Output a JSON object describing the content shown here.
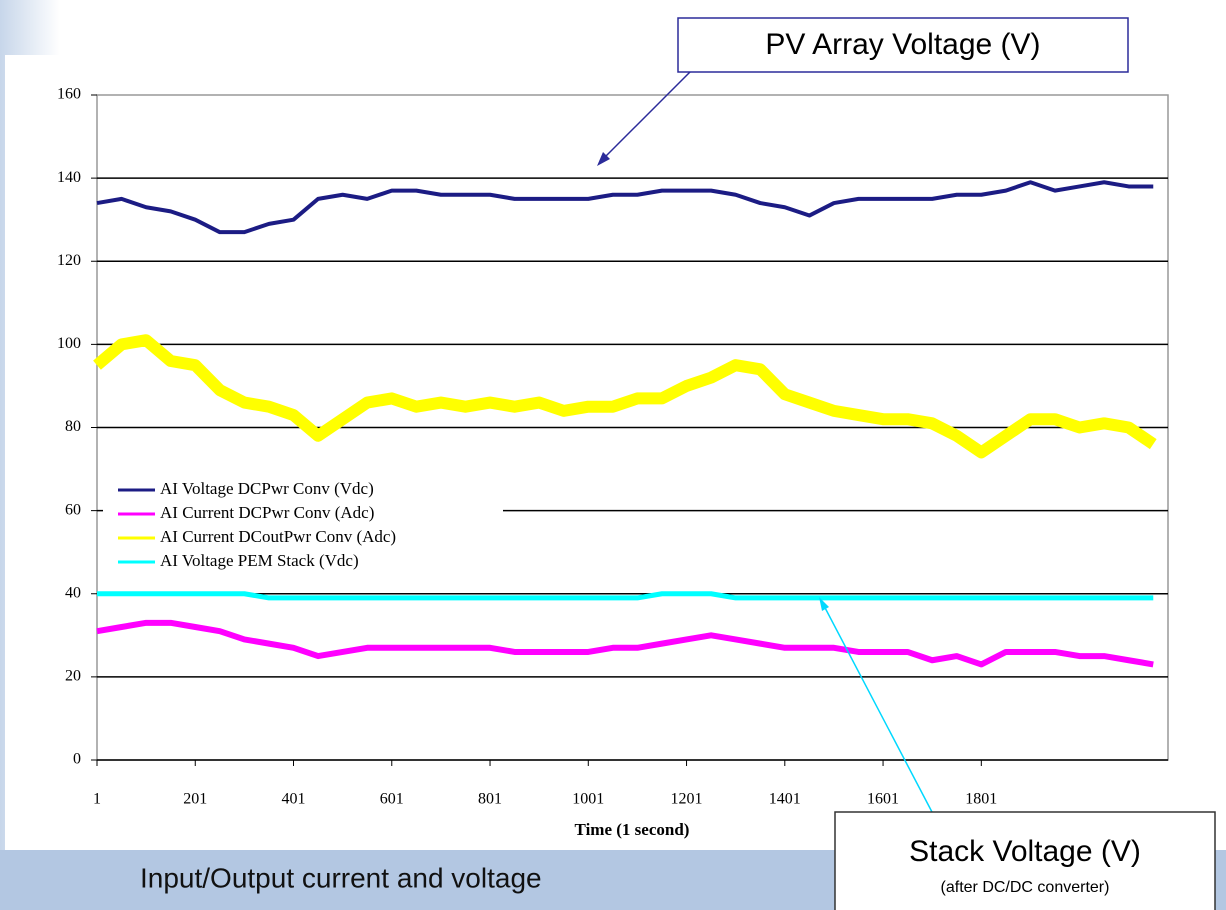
{
  "chart_data": {
    "type": "line",
    "xlabel": "Time (1 second)",
    "caption": "Input/Output current and voltage",
    "annotations": [
      {
        "text": "PV Array Voltage (V)"
      },
      {
        "text": "Stack Voltage (V)",
        "subtext": "(after DC/DC converter)"
      }
    ],
    "xlim": [
      1,
      2181
    ],
    "xticks": [
      1,
      201,
      401,
      601,
      801,
      1001,
      1201,
      1401,
      1601,
      1801
    ],
    "ylim": [
      0,
      160
    ],
    "yticks": [
      0,
      20,
      40,
      60,
      80,
      100,
      120,
      140,
      160
    ],
    "grid": true,
    "legend": "left",
    "x": [
      1,
      51,
      101,
      151,
      201,
      251,
      301,
      351,
      401,
      451,
      501,
      551,
      601,
      651,
      701,
      751,
      801,
      851,
      901,
      951,
      1001,
      1051,
      1101,
      1151,
      1201,
      1251,
      1301,
      1351,
      1401,
      1451,
      1501,
      1551,
      1601,
      1651,
      1701,
      1751,
      1801,
      1851,
      1901,
      1951,
      2001,
      2051,
      2101,
      2151
    ],
    "series": [
      {
        "name": "AI Voltage DCPwr Conv (Vdc)",
        "color": "#1c1c84",
        "values": [
          134,
          135,
          133,
          132,
          130,
          127,
          127,
          129,
          130,
          135,
          136,
          135,
          137,
          137,
          136,
          136,
          136,
          135,
          135,
          135,
          135,
          136,
          136,
          137,
          137,
          137,
          136,
          134,
          133,
          131,
          134,
          135,
          135,
          135,
          135,
          136,
          136,
          137,
          139,
          137,
          138,
          139,
          138,
          138
        ]
      },
      {
        "name": "AI Current DCPwr Conv (Adc)",
        "color": "#ff00ff",
        "values": [
          31,
          32,
          33,
          33,
          32,
          31,
          29,
          28,
          27,
          25,
          26,
          27,
          27,
          27,
          27,
          27,
          27,
          26,
          26,
          26,
          26,
          27,
          27,
          28,
          29,
          30,
          29,
          28,
          27,
          27,
          27,
          26,
          26,
          26,
          24,
          25,
          23,
          26,
          26,
          26,
          25,
          25,
          24,
          23
        ]
      },
      {
        "name": "AI Current DCoutPwr Conv (Adc)",
        "color": "#ffff00",
        "values": [
          95,
          100,
          101,
          96,
          95,
          89,
          86,
          85,
          83,
          78,
          82,
          86,
          87,
          85,
          86,
          85,
          86,
          85,
          86,
          84,
          85,
          85,
          87,
          87,
          90,
          92,
          95,
          94,
          88,
          86,
          84,
          83,
          82,
          82,
          81,
          78,
          74,
          78,
          82,
          82,
          80,
          81,
          80,
          76
        ]
      },
      {
        "name": "AI Voltage PEM Stack (Vdc)",
        "color": "#00ffff",
        "values": [
          40,
          40,
          40,
          40,
          40,
          40,
          40,
          39,
          39,
          39,
          39,
          39,
          39,
          39,
          39,
          39,
          39,
          39,
          39,
          39,
          39,
          39,
          39,
          40,
          40,
          40,
          39,
          39,
          39,
          39,
          39,
          39,
          39,
          39,
          39,
          39,
          39,
          39,
          39,
          39,
          39,
          39,
          39,
          39
        ]
      }
    ]
  }
}
